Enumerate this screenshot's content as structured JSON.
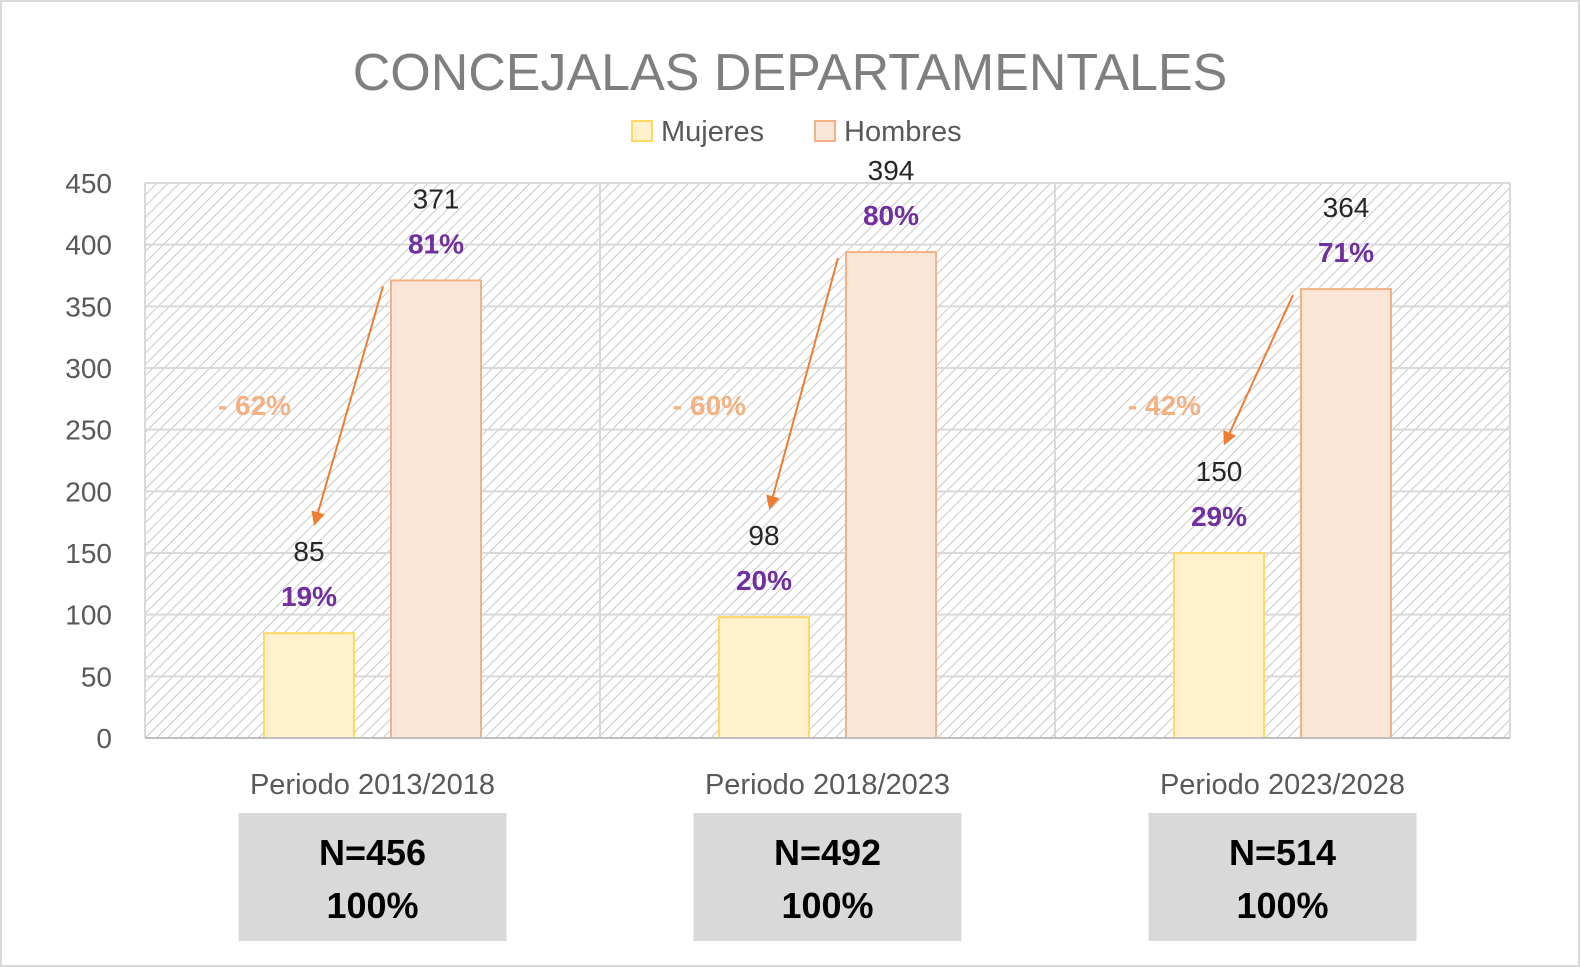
{
  "chart_data": {
    "type": "bar",
    "title": "CONCEJALAS DEPARTAMENTALES",
    "categories": [
      "Periodo 2013/2018",
      "Periodo 2018/2023",
      "Periodo 2023/2028"
    ],
    "series": [
      {
        "name": "Mujeres",
        "values": [
          85,
          98,
          150
        ],
        "percent_labels": [
          "19%",
          "20%",
          "29%"
        ],
        "color": "#fff2cc",
        "border": "#ffd966"
      },
      {
        "name": "Hombres",
        "values": [
          371,
          394,
          364
        ],
        "percent_labels": [
          "81%",
          "80%",
          "71%"
        ],
        "color": "#fbe5d6",
        "border": "#f4b183"
      }
    ],
    "gap_labels": [
      "- 62%",
      "- 60%",
      "- 42%"
    ],
    "totals": [
      {
        "n": "N=456",
        "pct": "100%"
      },
      {
        "n": "N=492",
        "pct": "100%"
      },
      {
        "n": "N=514",
        "pct": "100%"
      }
    ],
    "yticks": [
      "0",
      "50",
      "100",
      "150",
      "200",
      "250",
      "300",
      "350",
      "400",
      "450"
    ],
    "ylim": [
      0,
      450
    ],
    "grid": true,
    "legend": "top",
    "colors": {
      "arrow": "#ed7d31",
      "gap_text": "#f4b183",
      "percent_text": "#7030a0",
      "total_box": "#d9d9d9"
    }
  }
}
